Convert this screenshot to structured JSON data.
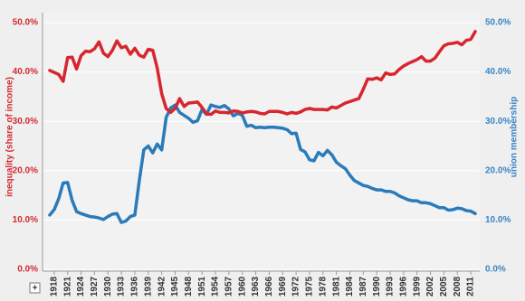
{
  "chart_data": {
    "type": "line",
    "y_label": "inequality (share of income)",
    "y2_label": "union membership",
    "x": [
      1917,
      1918,
      1919,
      1920,
      1921,
      1922,
      1923,
      1924,
      1925,
      1926,
      1927,
      1928,
      1929,
      1930,
      1931,
      1932,
      1933,
      1934,
      1935,
      1936,
      1937,
      1938,
      1939,
      1940,
      1941,
      1942,
      1943,
      1944,
      1945,
      1946,
      1947,
      1948,
      1949,
      1950,
      1951,
      1952,
      1953,
      1954,
      1955,
      1956,
      1957,
      1958,
      1959,
      1960,
      1961,
      1962,
      1963,
      1964,
      1965,
      1966,
      1967,
      1968,
      1969,
      1970,
      1971,
      1972,
      1973,
      1974,
      1975,
      1976,
      1977,
      1978,
      1979,
      1980,
      1981,
      1982,
      1983,
      1984,
      1985,
      1986,
      1987,
      1988,
      1989,
      1990,
      1991,
      1992,
      1993,
      1994,
      1995,
      1996,
      1997,
      1998,
      1999,
      2000,
      2001,
      2002,
      2003,
      2004,
      2005,
      2006,
      2007,
      2008,
      2009,
      2010,
      2011,
      2012
    ],
    "xlim": [
      1915.4,
      2013
    ],
    "xticks": [
      1918,
      1921,
      1924,
      1927,
      1930,
      1933,
      1936,
      1939,
      1942,
      1945,
      1948,
      1951,
      1954,
      1957,
      1960,
      1963,
      1966,
      1969,
      1972,
      1975,
      1978,
      1981,
      1984,
      1987,
      1990,
      1993,
      1996,
      1999,
      2002,
      2005,
      2008,
      2011
    ],
    "ylim": [
      0,
      50
    ],
    "yticks": [
      {
        "value": 0,
        "label": "0.0%"
      },
      {
        "value": 10,
        "label": "10.0%"
      },
      {
        "value": 20,
        "label": "20.0%"
      },
      {
        "value": 30,
        "label": "30.0%"
      },
      {
        "value": 40,
        "label": "40.0%"
      },
      {
        "value": 50,
        "label": "50.0%"
      }
    ],
    "y2lim": [
      0,
      50
    ],
    "y2ticks": [
      {
        "value": 0,
        "label": "0.0%"
      },
      {
        "value": 10,
        "label": "10.0%"
      },
      {
        "value": 20,
        "label": "20.0%"
      },
      {
        "value": 30,
        "label": "30.0%"
      },
      {
        "value": 40,
        "label": "40.0%"
      },
      {
        "value": 50,
        "label": "50.0%"
      }
    ],
    "y_color": "#d42a32",
    "y2_color": "#3a86c4",
    "grid": true,
    "series": [
      {
        "name": "inequality (share of income)",
        "color": "#d7262e",
        "values": [
          40.3,
          39.9,
          39.5,
          38.1,
          42.9,
          43.0,
          40.6,
          43.3,
          44.2,
          44.1,
          44.7,
          46.1,
          43.8,
          43.1,
          44.4,
          46.3,
          44.9,
          45.2,
          43.6,
          44.8,
          43.4,
          43.0,
          44.6,
          44.4,
          40.8,
          35.6,
          32.6,
          31.8,
          32.6,
          34.6,
          33.0,
          33.7,
          33.8,
          33.9,
          32.8,
          31.5,
          31.4,
          32.1,
          31.8,
          31.8,
          31.7,
          32.1,
          32.0,
          31.7,
          31.9,
          32.0,
          31.9,
          31.6,
          31.5,
          32.0,
          32.0,
          32.0,
          31.8,
          31.5,
          31.8,
          31.6,
          31.9,
          32.4,
          32.6,
          32.4,
          32.4,
          32.4,
          32.3,
          32.9,
          32.7,
          33.2,
          33.7,
          34.0,
          34.3,
          34.6,
          36.5,
          38.6,
          38.5,
          38.8,
          38.4,
          39.8,
          39.5,
          39.6,
          40.5,
          41.2,
          41.7,
          42.1,
          42.5,
          43.1,
          42.2,
          42.2,
          42.8,
          44.1,
          45.3,
          45.7,
          45.8,
          46.0,
          45.5,
          46.4,
          46.6,
          48.2
        ]
      },
      {
        "name": "union membership",
        "color": "#2a7bbb",
        "axis": "y2",
        "values": [
          11.0,
          12.1,
          14.3,
          17.5,
          17.6,
          14.0,
          11.7,
          11.3,
          11.0,
          10.7,
          10.6,
          10.4,
          10.1,
          10.7,
          11.2,
          11.3,
          9.5,
          9.8,
          10.7,
          11.0,
          18.0,
          24.2,
          25.0,
          23.6,
          25.4,
          24.2,
          30.8,
          32.7,
          33.3,
          31.8,
          31.2,
          30.6,
          29.8,
          30.1,
          32.4,
          31.4,
          33.3,
          33.0,
          32.8,
          33.2,
          32.5,
          31.1,
          31.6,
          31.2,
          29.0,
          29.2,
          28.7,
          28.8,
          28.7,
          28.8,
          28.8,
          28.7,
          28.6,
          28.3,
          27.5,
          27.6,
          24.3,
          23.8,
          22.2,
          22.0,
          23.7,
          23.0,
          24.1,
          23.2,
          21.7,
          21.0,
          20.4,
          19.1,
          18.0,
          17.5,
          17.0,
          16.8,
          16.4,
          16.1,
          16.1,
          15.8,
          15.8,
          15.5,
          14.9,
          14.5,
          14.1,
          13.9,
          13.9,
          13.5,
          13.5,
          13.3,
          12.9,
          12.5,
          12.5,
          12.0,
          12.1,
          12.4,
          12.3,
          11.9,
          11.8,
          11.3
        ]
      }
    ]
  },
  "controls": {
    "expand": "+"
  }
}
